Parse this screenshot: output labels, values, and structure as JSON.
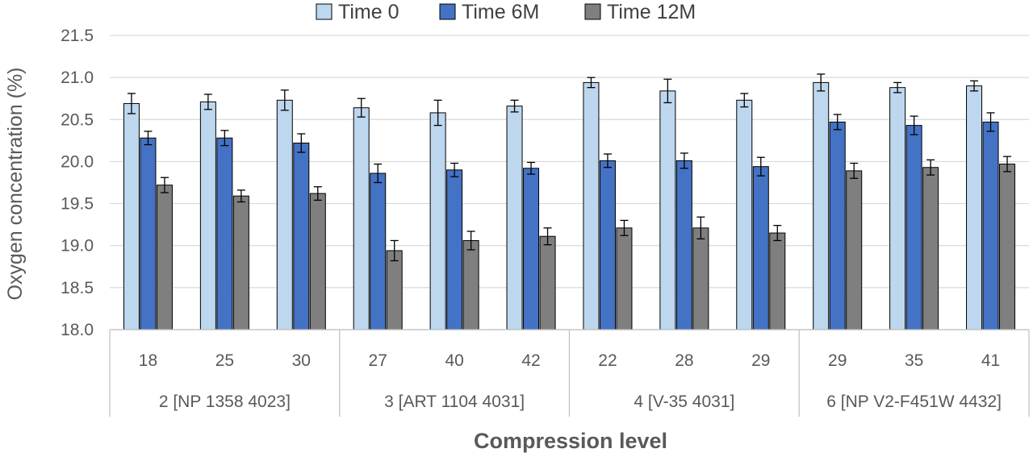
{
  "chart_data": {
    "type": "bar",
    "xlabel": "Compression level",
    "ylabel": "Oxygen concentration (%)",
    "ylim": [
      18.0,
      21.5
    ],
    "yticks": [
      "18.0",
      "18.5",
      "19.0",
      "19.5",
      "20.0",
      "20.5",
      "21.0",
      "21.5"
    ],
    "grid": true,
    "legend_position": "top",
    "groups": [
      {
        "label": "2 [NP 1358 4023]",
        "categories": [
          "18",
          "25",
          "30"
        ]
      },
      {
        "label": "3 [ART 1104 4031]",
        "categories": [
          "27",
          "40",
          "42"
        ]
      },
      {
        "label": "4 [V-35 4031]",
        "categories": [
          "22",
          "28",
          "29"
        ]
      },
      {
        "label": "6 [NP V2-F451W 4432]",
        "categories": [
          "29",
          "35",
          "41"
        ]
      }
    ],
    "series": [
      {
        "name": "Time 0",
        "color": "#bdd7ee",
        "values": [
          20.69,
          20.71,
          20.73,
          20.64,
          20.58,
          20.66,
          20.94,
          20.84,
          20.73,
          20.94,
          20.88,
          20.9
        ],
        "errors": [
          0.12,
          0.09,
          0.12,
          0.11,
          0.15,
          0.07,
          0.06,
          0.14,
          0.08,
          0.1,
          0.06,
          0.06
        ]
      },
      {
        "name": "Time 6M",
        "color": "#4472c4",
        "values": [
          20.28,
          20.28,
          20.22,
          19.86,
          19.9,
          19.92,
          20.01,
          20.01,
          19.94,
          20.47,
          20.43,
          20.47
        ],
        "errors": [
          0.08,
          0.09,
          0.11,
          0.11,
          0.08,
          0.07,
          0.08,
          0.09,
          0.11,
          0.09,
          0.11,
          0.11
        ]
      },
      {
        "name": "Time 12M",
        "color": "#7f7f7f",
        "values": [
          19.72,
          19.59,
          19.62,
          18.94,
          19.06,
          19.11,
          19.21,
          19.21,
          19.15,
          19.89,
          19.93,
          19.97
        ],
        "errors": [
          0.09,
          0.07,
          0.08,
          0.12,
          0.11,
          0.1,
          0.09,
          0.13,
          0.09,
          0.09,
          0.09,
          0.09
        ]
      }
    ]
  }
}
